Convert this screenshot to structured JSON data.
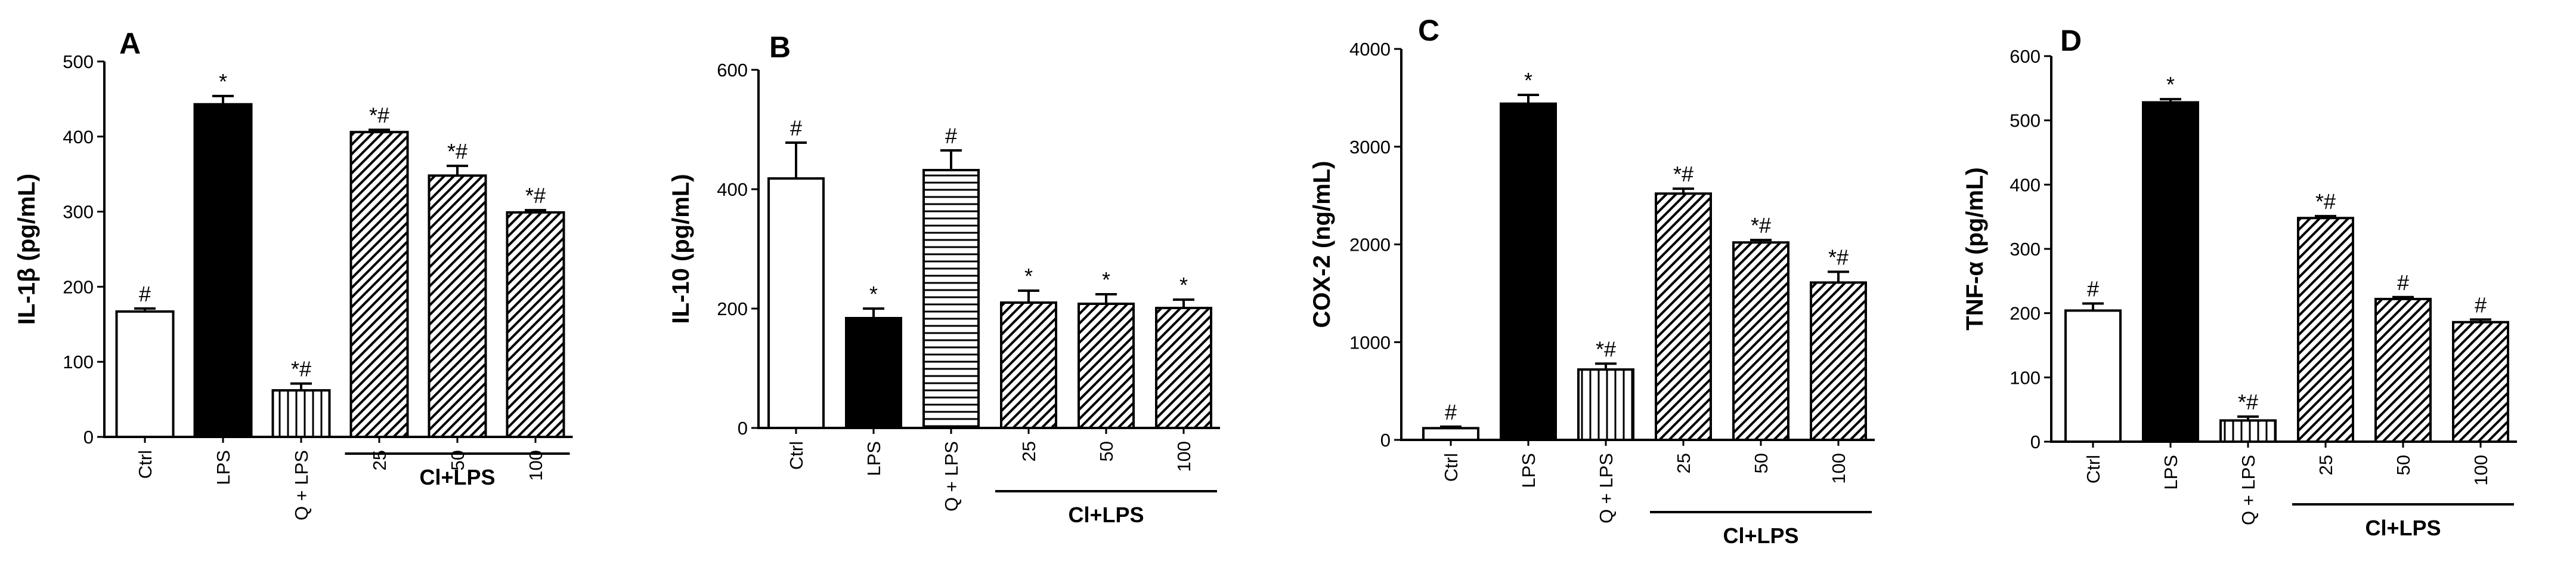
{
  "figure": {
    "background": "#ffffff",
    "bar_colors": {
      "white": "#ffffff",
      "black": "#000000",
      "edge": "#000000"
    }
  },
  "chart_data": [
    {
      "panel": "A",
      "type": "bar",
      "ylabel": "IL-1β (pg/mL)",
      "ylim": [
        0,
        500
      ],
      "yticks": [
        0,
        100,
        200,
        300,
        400,
        500
      ],
      "categories": [
        "Ctrl",
        "LPS",
        "Q + LPS",
        "25",
        "50",
        "100"
      ],
      "group_label": "Cl+LPS",
      "group_span": [
        3,
        5
      ],
      "values": [
        167,
        443,
        62,
        406,
        348,
        299
      ],
      "errors": [
        4,
        11,
        9,
        3,
        13,
        3
      ],
      "fills": [
        "white",
        "black",
        "vertical",
        "diagonal",
        "diagonal",
        "diagonal"
      ],
      "annotations": [
        "#",
        "*",
        "*#",
        "*#",
        "*#",
        "*#"
      ],
      "grid": false
    },
    {
      "panel": "B",
      "type": "bar",
      "ylabel": "IL-10 (pg/mL)",
      "ylim": [
        0,
        600
      ],
      "yticks": [
        0,
        200,
        400,
        600
      ],
      "categories": [
        "Ctrl",
        "LPS",
        "Q + LPS",
        "25",
        "50",
        "100"
      ],
      "group_label": "Cl+LPS",
      "group_span": [
        3,
        5
      ],
      "values": [
        418,
        184,
        432,
        210,
        208,
        201
      ],
      "errors": [
        60,
        16,
        33,
        20,
        16,
        14
      ],
      "fills": [
        "white",
        "black",
        "horizontal",
        "diagonal",
        "diagonal",
        "diagonal"
      ],
      "annotations": [
        "#",
        "*",
        "#",
        "*",
        "*",
        "*"
      ],
      "grid": false
    },
    {
      "panel": "C",
      "type": "bar",
      "ylabel": "COX-2 (ng/mL)",
      "ylim": [
        0,
        4000
      ],
      "yticks": [
        0,
        1000,
        2000,
        3000,
        4000
      ],
      "categories": [
        "Ctrl",
        "LPS",
        "Q + LPS",
        "25",
        "50",
        "100"
      ],
      "group_label": "Cl+LPS",
      "group_span": [
        3,
        5
      ],
      "values": [
        120,
        3440,
        720,
        2520,
        2020,
        1610
      ],
      "errors": [
        15,
        90,
        60,
        50,
        25,
        110
      ],
      "fills": [
        "white",
        "black",
        "vertical",
        "diagonal",
        "diagonal",
        "diagonal"
      ],
      "annotations": [
        "#",
        "*",
        "*#",
        "*#",
        "*#",
        "*#"
      ],
      "grid": false
    },
    {
      "panel": "D",
      "type": "bar",
      "ylabel": "TNF-α (pg/mL)",
      "ylim": [
        0,
        600
      ],
      "yticks": [
        0,
        100,
        200,
        300,
        400,
        500,
        600
      ],
      "categories": [
        "Ctrl",
        "LPS",
        "Q + LPS",
        "25",
        "50",
        "100"
      ],
      "group_label": "Cl+LPS",
      "group_span": [
        3,
        5
      ],
      "values": [
        204,
        528,
        33,
        348,
        222,
        186
      ],
      "errors": [
        11,
        5,
        6,
        3,
        3,
        4
      ],
      "fills": [
        "white",
        "black",
        "vertical",
        "diagonal",
        "diagonal",
        "diagonal"
      ],
      "annotations": [
        "#",
        "*",
        "*#",
        "*#",
        "#",
        "#"
      ],
      "grid": false
    }
  ]
}
